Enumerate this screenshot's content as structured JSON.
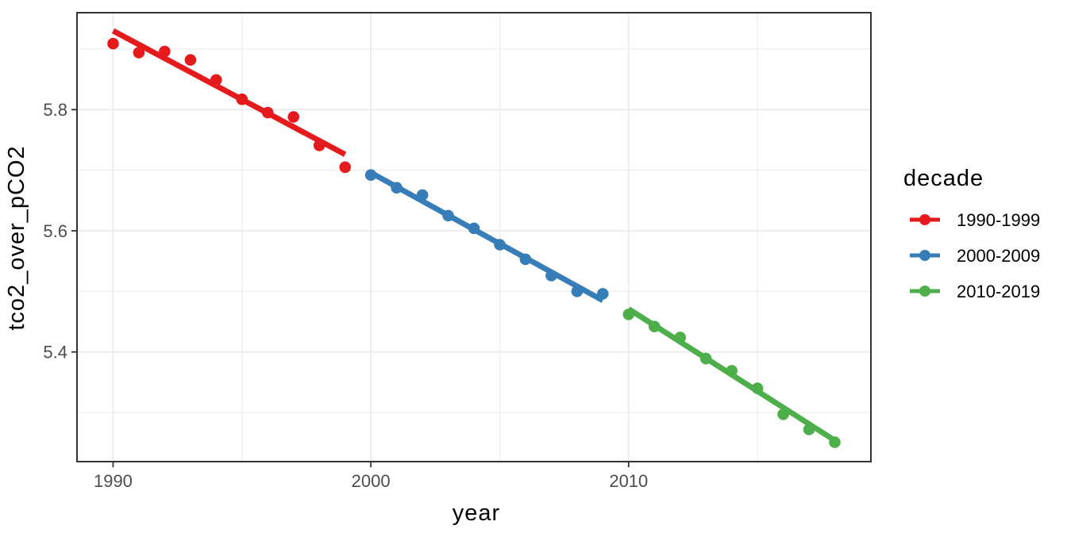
{
  "chart_data": {
    "type": "scatter",
    "title": "",
    "xlabel": "year",
    "ylabel": "tco2_over_pCO2",
    "xlim": [
      1988.6,
      2019.4
    ],
    "ylim": [
      5.219,
      5.96
    ],
    "grid": "on",
    "x_tick_values": [
      1990,
      2000,
      2010
    ],
    "x_tick_labels": [
      "1990",
      "2000",
      "2010"
    ],
    "x_minor_gridlines": [
      1995,
      2005,
      2015
    ],
    "y_tick_values": [
      5.4,
      5.6,
      5.8
    ],
    "y_tick_labels": [
      "5.4",
      "5.6",
      "5.8"
    ],
    "y_minor_gridlines": [
      5.3,
      5.5,
      5.7,
      5.9
    ],
    "legend": {
      "title": "decade",
      "position": "right"
    },
    "series": [
      {
        "name": "1990-1999",
        "color": "#E41A1C",
        "years": [
          1990,
          1991,
          1992,
          1993,
          1994,
          1995,
          1996,
          1997,
          1998,
          1999
        ],
        "values": [
          5.909,
          5.894,
          5.896,
          5.882,
          5.849,
          5.817,
          5.795,
          5.788,
          5.741,
          5.705
        ],
        "trend": {
          "x": [
            1990,
            1999
          ],
          "y": [
            5.93,
            5.726
          ]
        }
      },
      {
        "name": "2000-2009",
        "color": "#377EB8",
        "years": [
          2000,
          2001,
          2002,
          2003,
          2004,
          2005,
          2006,
          2007,
          2008,
          2009
        ],
        "values": [
          5.692,
          5.671,
          5.659,
          5.625,
          5.604,
          5.577,
          5.553,
          5.526,
          5.5,
          5.496
        ],
        "trend": {
          "x": [
            2000,
            2009
          ],
          "y": [
            5.696,
            5.485
          ]
        }
      },
      {
        "name": "2010-2019",
        "color": "#4DAF4A",
        "years": [
          2010,
          2011,
          2012,
          2013,
          2014,
          2015,
          2016,
          2017,
          2018
        ],
        "values": [
          5.462,
          5.442,
          5.424,
          5.389,
          5.369,
          5.34,
          5.297,
          5.272,
          5.251
        ],
        "trend": {
          "x": [
            2010,
            2018
          ],
          "y": [
            5.471,
            5.254
          ]
        }
      }
    ]
  },
  "style": {
    "background": "#FFFFFF",
    "panel_background": "#FFFFFF",
    "grid_color": "#EBEBEB",
    "panel_border_color": "#333333",
    "tick_label_color": "#4D4D4D",
    "axis_title_color": "#000000"
  }
}
